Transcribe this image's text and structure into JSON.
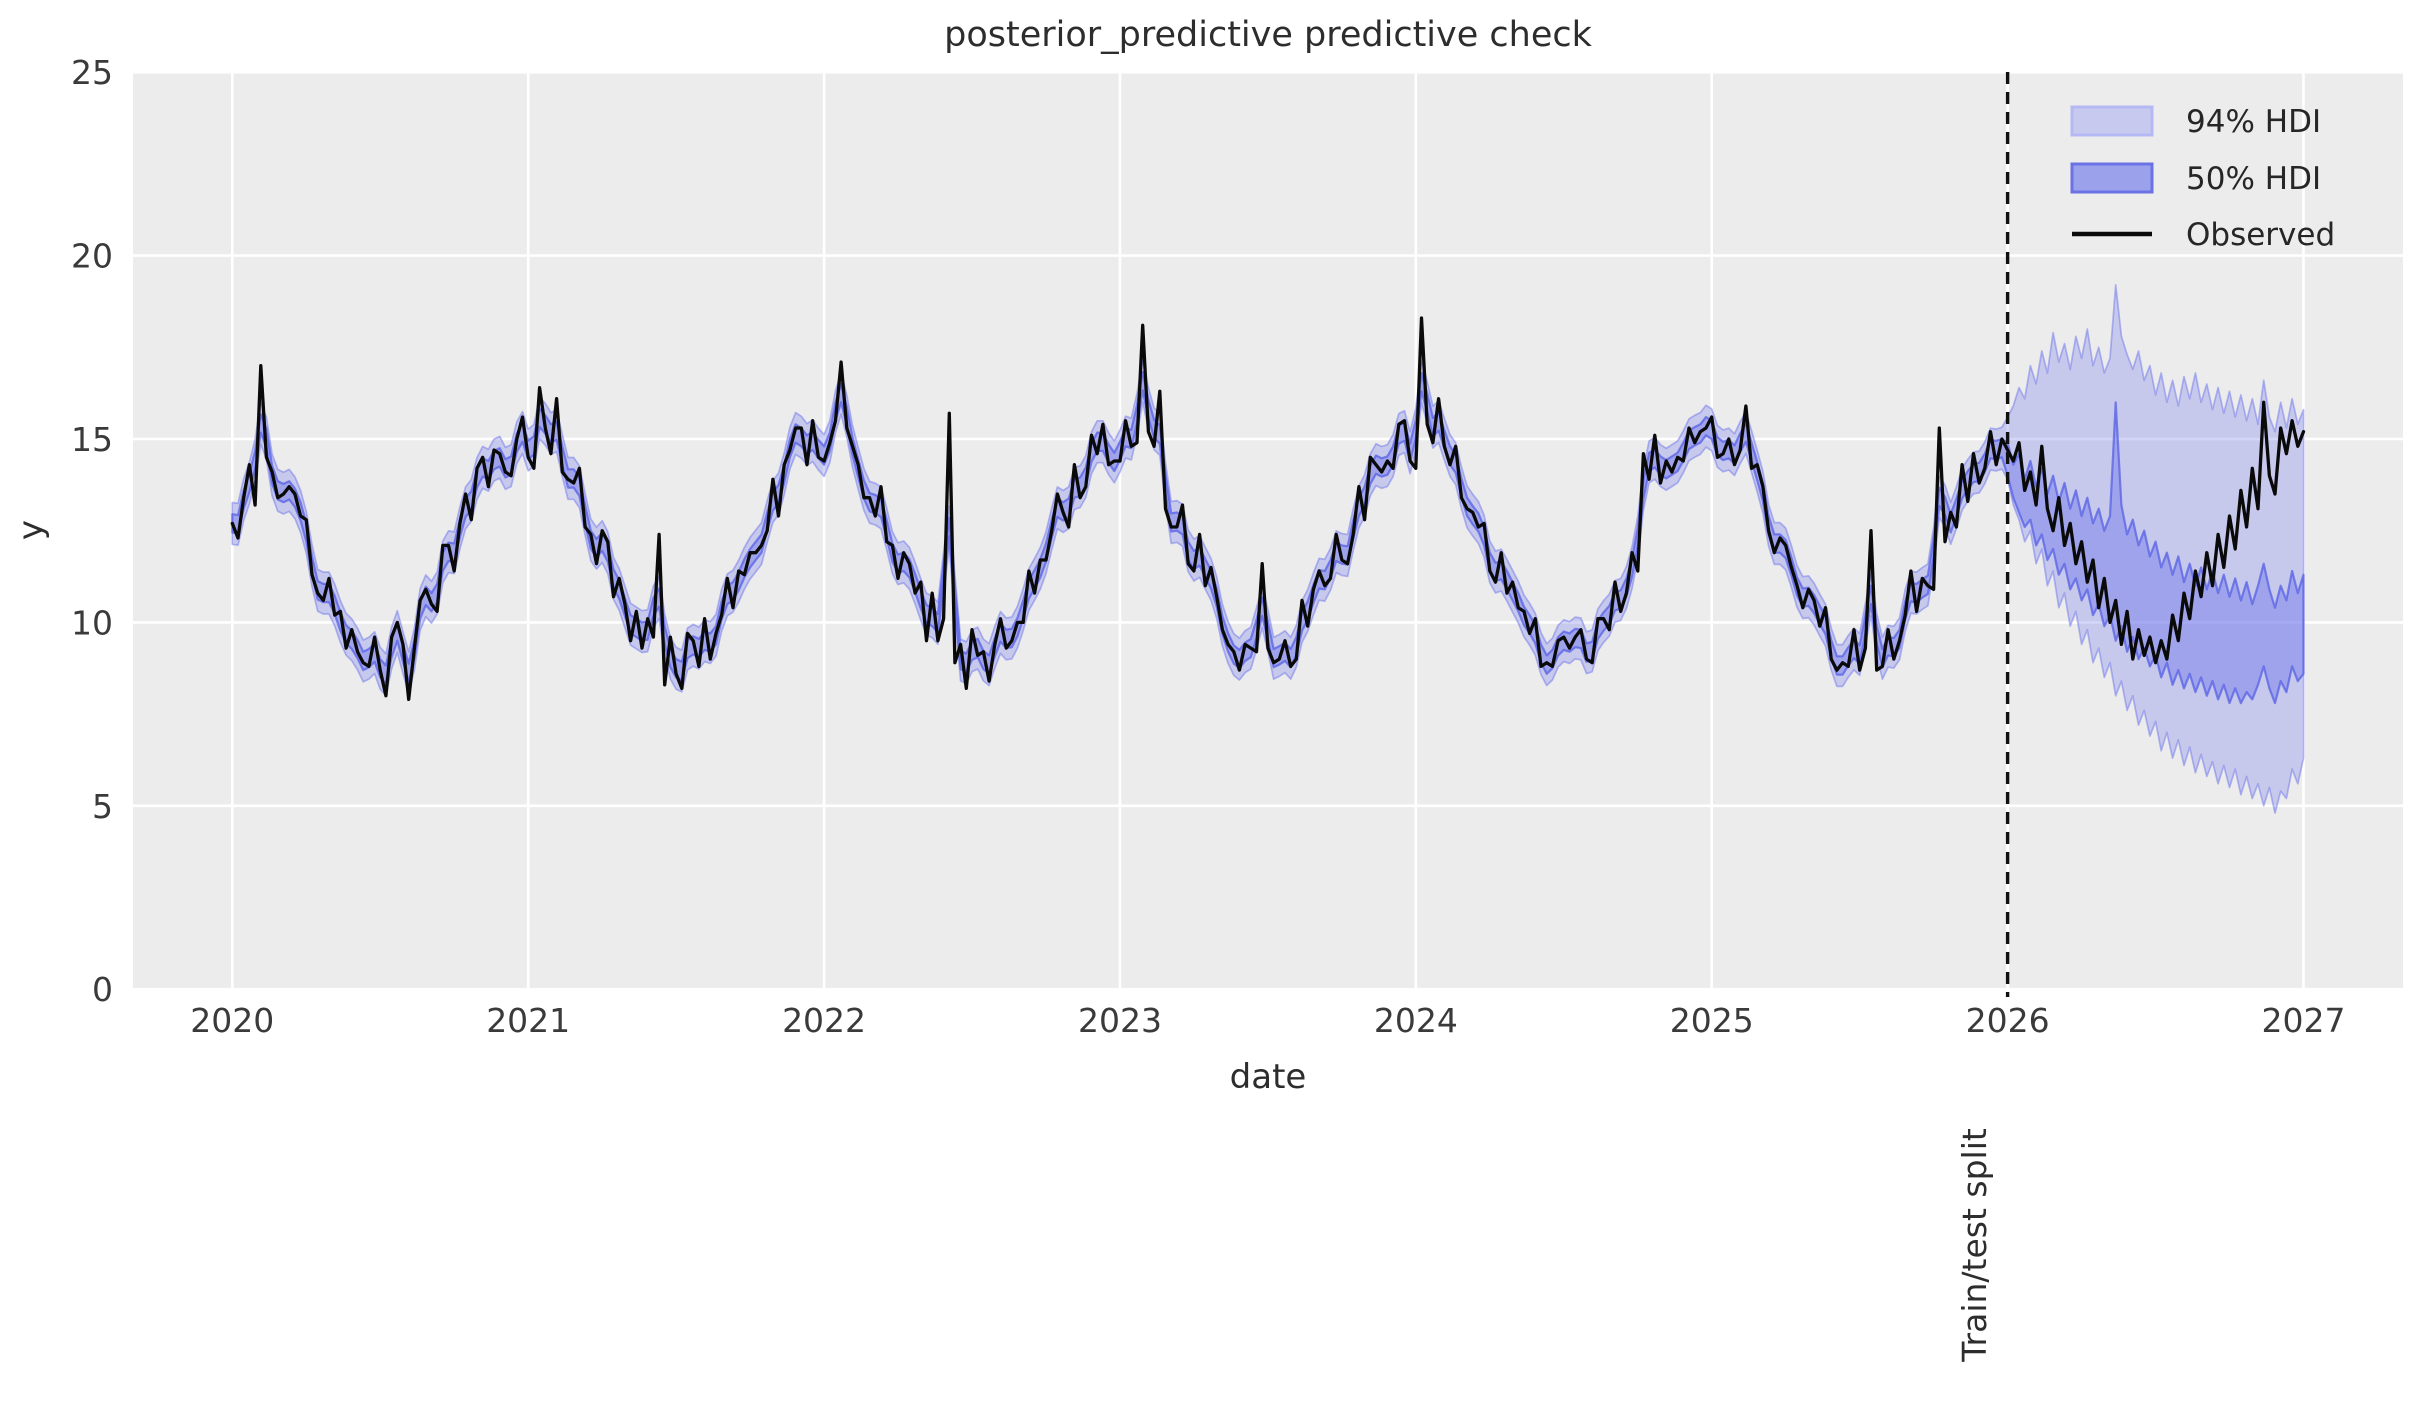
{
  "title": "posterior_predictive predictive check",
  "axes": {
    "x_label": "date",
    "y_label": "y",
    "x_ticks": [
      "2020",
      "2021",
      "2022",
      "2023",
      "2024",
      "2025",
      "2026",
      "2027"
    ],
    "y_ticks": [
      "0",
      "5",
      "10",
      "15",
      "20",
      "25"
    ]
  },
  "legend": {
    "items": [
      {
        "label": "94% HDI",
        "swatch": "band-light"
      },
      {
        "label": "50% HDI",
        "swatch": "band-dark"
      },
      {
        "label": "Observed",
        "swatch": "line"
      }
    ]
  },
  "annotations": {
    "train_test_split_label": "Train/test split",
    "split_x_year": 2026
  },
  "colors": {
    "figure_bg": "#ffffff",
    "plot_bg": "#ececec",
    "grid": "#ffffff",
    "band_base": "#6d75eb",
    "band50_edge": "#535de4",
    "observed": "#0a0a0a",
    "split_line": "#111111",
    "title_text": "#2d2d2d",
    "tick_text": "#3a3a3a",
    "legend_94_fill": "#c7c9ef",
    "legend_94_edge": "#b5b9f3",
    "legend_50_fill": "#9ca1ec",
    "legend_50_edge": "#6b72e6"
  },
  "chart_data": {
    "type": "line",
    "title": "posterior_predictive predictive check",
    "xlabel": "date",
    "ylabel": "y",
    "x_start_year": 2020,
    "x_end_year": 2027,
    "points_per_year": 52,
    "x_axis_range_years": [
      2019.665,
      2027.34
    ],
    "ylim": [
      0,
      25
    ],
    "grid": true,
    "legend_position": "upper right",
    "legend_entries": [
      "94% HDI",
      "50% HDI",
      "Observed"
    ],
    "train_test_split_year": 2026,
    "series": [
      {
        "name": "Observed",
        "color": "#0a0a0a",
        "values": [
          12.7,
          12.3,
          13.4,
          14.3,
          13.2,
          17.0,
          14.5,
          14.1,
          13.4,
          13.5,
          13.7,
          13.5,
          12.9,
          12.8,
          11.3,
          10.8,
          10.6,
          11.2,
          10.2,
          10.3,
          9.3,
          9.8,
          9.2,
          8.9,
          8.8,
          9.6,
          8.7,
          8.0,
          9.6,
          10.0,
          9.4,
          7.9,
          9.3,
          10.6,
          10.9,
          10.5,
          10.3,
          12.1,
          12.1,
          11.4,
          12.7,
          13.5,
          12.8,
          14.2,
          14.5,
          13.7,
          14.7,
          14.6,
          14.1,
          14.0,
          15.0,
          15.6,
          14.5,
          14.2,
          16.4,
          15.3,
          14.6,
          16.1,
          14.1,
          13.9,
          13.8,
          14.2,
          12.6,
          12.4,
          11.6,
          12.5,
          12.2,
          10.7,
          11.2,
          10.5,
          9.5,
          10.3,
          9.3,
          10.1,
          9.6,
          12.4,
          8.3,
          9.6,
          8.6,
          8.2,
          9.7,
          9.5,
          8.8,
          10.1,
          9.0,
          9.7,
          10.2,
          11.2,
          10.4,
          11.4,
          11.3,
          11.9,
          11.9,
          12.1,
          12.5,
          13.9,
          12.9,
          14.3,
          14.7,
          15.3,
          15.3,
          14.3,
          15.5,
          14.5,
          14.4,
          14.9,
          15.5,
          17.1,
          15.3,
          14.8,
          14.3,
          13.4,
          13.4,
          12.9,
          13.7,
          12.2,
          12.1,
          11.2,
          11.9,
          11.6,
          10.8,
          11.1,
          9.5,
          10.8,
          9.5,
          10.1,
          15.7,
          8.9,
          9.4,
          8.2,
          9.8,
          9.1,
          9.2,
          8.4,
          9.4,
          10.1,
          9.3,
          9.5,
          10.0,
          10.0,
          11.4,
          10.8,
          11.7,
          11.7,
          12.5,
          13.5,
          13.0,
          12.6,
          14.3,
          13.4,
          13.7,
          15.1,
          14.6,
          15.4,
          14.3,
          14.4,
          14.4,
          15.5,
          14.8,
          14.9,
          18.1,
          15.2,
          14.8,
          16.3,
          13.1,
          12.6,
          12.6,
          13.2,
          11.6,
          11.4,
          12.4,
          11.0,
          11.5,
          10.7,
          9.8,
          9.4,
          9.2,
          8.7,
          9.4,
          9.3,
          9.2,
          11.6,
          9.3,
          8.9,
          9.0,
          9.5,
          8.8,
          9.0,
          10.6,
          9.9,
          10.9,
          11.4,
          11.0,
          11.2,
          12.4,
          11.7,
          11.6,
          12.4,
          13.7,
          12.8,
          14.5,
          14.3,
          14.1,
          14.4,
          14.2,
          15.4,
          15.5,
          14.4,
          14.2,
          18.3,
          15.4,
          14.9,
          16.1,
          14.8,
          14.3,
          14.8,
          13.4,
          13.1,
          13.0,
          12.6,
          12.7,
          11.4,
          11.1,
          11.9,
          10.8,
          11.1,
          10.4,
          10.3,
          9.7,
          10.1,
          8.8,
          8.9,
          8.8,
          9.5,
          9.6,
          9.3,
          9.6,
          9.8,
          9.0,
          8.9,
          10.1,
          10.1,
          9.8,
          11.1,
          10.3,
          10.8,
          11.9,
          11.4,
          14.6,
          13.9,
          15.1,
          13.8,
          14.4,
          14.1,
          14.5,
          14.4,
          15.3,
          14.9,
          15.2,
          15.3,
          15.6,
          14.5,
          14.6,
          15.0,
          14.3,
          14.7,
          15.9,
          14.2,
          14.3,
          13.7,
          12.5,
          11.9,
          12.3,
          12.1,
          11.5,
          11.0,
          10.4,
          10.9,
          10.6,
          9.9,
          10.4,
          9.0,
          8.7,
          8.9,
          8.8,
          9.8,
          8.7,
          9.3,
          12.5,
          8.7,
          8.8,
          9.8,
          9.0,
          9.5,
          10.2,
          11.4,
          10.3,
          11.2,
          11.0,
          10.9,
          15.3,
          12.2,
          13.0,
          12.6,
          14.3,
          13.3,
          14.6,
          13.8,
          14.2,
          15.2,
          14.3,
          15.0,
          14.7,
          14.4,
          14.9,
          13.6,
          14.1,
          13.2,
          14.8,
          13.1,
          12.5,
          13.4,
          12.1,
          12.7,
          11.6,
          12.2,
          11.1,
          11.7,
          10.4,
          11.2,
          10.0,
          10.6,
          9.4,
          10.3,
          9.0,
          9.8,
          9.1,
          9.6,
          8.9,
          9.5,
          9.0,
          10.2,
          9.5,
          10.8,
          10.1,
          11.4,
          10.7,
          11.9,
          11.0,
          12.4,
          11.5,
          12.9,
          12.0,
          13.6,
          12.6,
          14.2,
          13.1,
          16.0,
          14.0,
          13.5,
          15.3,
          14.6,
          15.5,
          14.8,
          15.2
        ]
      }
    ],
    "train_bands": {
      "description": "posterior predictive HDI bands hugging the observed series before the split",
      "center": "moving-average-3 of Observed",
      "hdi94_halfwidth": 0.57,
      "hdi50_halfwidth": 0.25
    },
    "test_bands": {
      "start_index": 312,
      "hdi94_high": [
        15.6,
        15.9,
        16.4,
        16.1,
        17.0,
        16.5,
        17.4,
        16.8,
        17.9,
        17.1,
        17.6,
        16.9,
        17.8,
        17.2,
        18.0,
        17.0,
        17.5,
        16.8,
        17.2,
        19.2,
        17.8,
        17.3,
        16.9,
        17.4,
        16.6,
        17.0,
        16.2,
        16.8,
        16.0,
        16.6,
        15.9,
        16.7,
        16.1,
        16.8,
        16.0,
        16.5,
        15.8,
        16.4,
        15.7,
        16.3,
        15.6,
        16.2,
        15.5,
        16.1,
        15.4,
        16.6,
        15.6,
        15.2,
        16.0,
        15.3,
        16.1,
        15.4,
        15.8
      ],
      "hdi94_low": [
        13.9,
        13.2,
        12.8,
        12.2,
        12.5,
        11.6,
        12.0,
        11.0,
        11.4,
        10.4,
        10.8,
        9.9,
        10.3,
        9.4,
        9.8,
        8.9,
        9.3,
        8.5,
        8.9,
        8.0,
        8.4,
        7.6,
        8.0,
        7.2,
        7.6,
        6.9,
        7.3,
        6.5,
        7.0,
        6.3,
        6.8,
        6.1,
        6.6,
        5.9,
        6.4,
        5.8,
        6.2,
        5.6,
        6.1,
        5.5,
        6.0,
        5.3,
        5.8,
        5.2,
        5.6,
        5.0,
        5.5,
        4.8,
        5.4,
        5.2,
        6.0,
        5.6,
        6.3
      ],
      "hdi50_high": [
        14.9,
        14.3,
        14.6,
        13.9,
        14.4,
        13.7,
        14.2,
        13.5,
        14.0,
        13.3,
        13.8,
        13.1,
        13.6,
        12.9,
        13.4,
        12.7,
        13.1,
        12.5,
        12.9,
        16.0,
        13.2,
        12.4,
        12.8,
        12.1,
        12.5,
        11.8,
        12.2,
        11.5,
        11.9,
        11.3,
        11.8,
        11.1,
        11.6,
        11.0,
        11.5,
        10.9,
        11.4,
        10.8,
        11.3,
        10.7,
        11.2,
        10.6,
        11.1,
        10.5,
        11.0,
        11.6,
        10.9,
        10.4,
        11.0,
        10.6,
        11.4,
        10.8,
        11.3
      ],
      "hdi50_low": [
        14.0,
        13.4,
        13.0,
        12.6,
        12.8,
        12.1,
        12.4,
        11.7,
        12.0,
        11.3,
        11.6,
        10.9,
        11.2,
        10.6,
        10.9,
        10.2,
        10.5,
        9.9,
        10.2,
        9.5,
        9.9,
        9.2,
        9.6,
        9.0,
        9.3,
        8.8,
        9.1,
        8.5,
        8.9,
        8.3,
        8.7,
        8.2,
        8.6,
        8.1,
        8.5,
        8.0,
        8.4,
        7.9,
        8.3,
        7.8,
        8.2,
        7.8,
        8.1,
        7.9,
        8.3,
        8.8,
        8.2,
        7.8,
        8.4,
        8.1,
        8.8,
        8.4,
        8.6
      ]
    }
  }
}
